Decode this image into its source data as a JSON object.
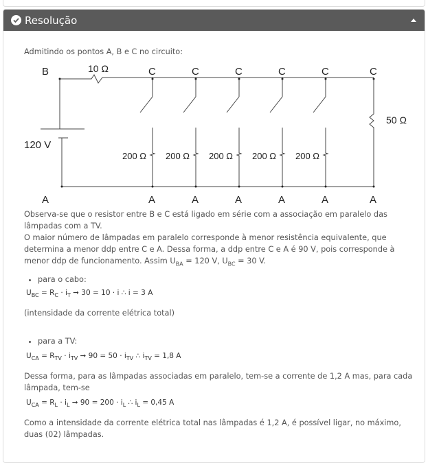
{
  "panel": {
    "title": "Resolução",
    "check_icon": "check-circle-icon",
    "collapse_icon": "caret-up-icon"
  },
  "content": {
    "intro": "Admitindo os pontos A, B e C no circuito:",
    "circuit": {
      "node_b": "B",
      "node_c": "C",
      "node_a": "A",
      "r_series": "10 Ω",
      "battery": "120 V",
      "r_lamp": "200 Ω",
      "r_tv": "50 Ω"
    },
    "p1": "Observa-se que o resistor entre B e C está ligado em série com a associação em paralelo das lâmpadas com a TV.",
    "p2a": "O maior número de lâmpadas em paralelo corresponde à menor resistência equivalente, que determina a menor ddp entre C e A. Dessa forma, a ddp entre C e A é 90 V, pois corresponde à menor ddp de funcionamento. Assim U",
    "p2_sub1": "BA",
    "p2b": " = 120 V, U",
    "p2_sub2": "BC",
    "p2c": " = 30 V.",
    "bullet1": "para o cabo:",
    "eq1": {
      "u": "U",
      "u_sub": "BC",
      "r": " = R",
      "r_sub": "C",
      "i": " · i",
      "i_sub": "T",
      "rest": " ➞ 30 = 10 · i  ∴ i = 3 A"
    },
    "note1": "(intensidade da corrente elétrica total)",
    "bullet2": "para a TV:",
    "eq2": {
      "u": "U",
      "u_sub": "CA",
      "r": " = R",
      "r_sub": "TV",
      "i": " · i",
      "i_sub": "TV",
      "mid": " ➞ 90 = 50 · i",
      "mid_sub": "TV",
      "end": "  ∴ i",
      "end_sub": "TV",
      "rest": " = 1,8 A"
    },
    "p3": "Dessa forma, para as lâmpadas associadas em paralelo, tem-se a corrente de 1,2 A mas, para cada lâmpada, tem-se",
    "eq3": {
      "u": "U",
      "u_sub": "CA",
      "r": " = R",
      "r_sub": "L",
      "i": " · i",
      "i_sub": "L",
      "mid": " ➞ 90 = 200 · i",
      "mid_sub": "L",
      "end": "  ∴ i",
      "end_sub": "L",
      "rest": " = 0,45 A"
    },
    "p4": "Como a intensidade da corrente elétrica total nas lâmpadas é 1,2 A, é possível ligar, no máximo, duas (02) lâmpadas."
  }
}
